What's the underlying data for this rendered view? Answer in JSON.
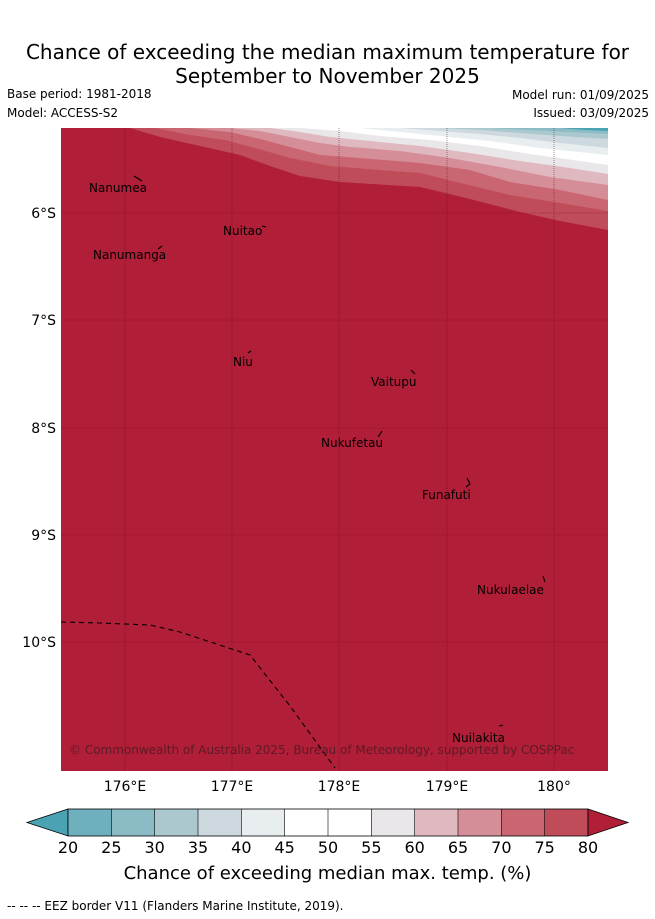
{
  "title": {
    "line1": "Chance of exceeding the median maximum temperature for",
    "line2": "September to November 2025"
  },
  "meta": {
    "base_period": "Base period: 1981-2018",
    "model": "Model: ACCESS-S2",
    "model_run": "Model run: 01/09/2025",
    "issued": "Issued: 03/09/2025"
  },
  "map": {
    "lon_range": [
      175.5,
      180.5
    ],
    "lat_range": [
      -5.3,
      -11.3
    ],
    "x_ticks": [
      "176°E",
      "177°E",
      "178°E",
      "179°E",
      "180°"
    ],
    "y_ticks": [
      "6°S",
      "7°S",
      "8°S",
      "9°S",
      "10°S"
    ],
    "places": [
      {
        "name": "Nanumea"
      },
      {
        "name": "Nuitao"
      },
      {
        "name": "Nanumanga"
      },
      {
        "name": "Niu"
      },
      {
        "name": "Vaitupu"
      },
      {
        "name": "Nukufetau"
      },
      {
        "name": "Funafuti"
      },
      {
        "name": "Nukulaelae"
      },
      {
        "name": "Nuilakita"
      }
    ],
    "copyright": "© Commonwealth of Australia 2025, Bureau of Meteorology, supported by COSPPac",
    "fill_value_pct": 80
  },
  "colorbar": {
    "title": "Chance of exceeding median max. temp. (%)",
    "ticks": [
      "20",
      "25",
      "30",
      "35",
      "40",
      "45",
      "50",
      "55",
      "60",
      "65",
      "70",
      "75",
      "80"
    ],
    "colors": [
      "#4aa3b3",
      "#6eb0bd",
      "#8bbbc5",
      "#aac8ce",
      "#cdd9de",
      "#e8eef0",
      "#ffffff",
      "#ffffff",
      "#e9e7e9",
      "#dfb8c0",
      "#d58e98",
      "#c96671",
      "#bf4c58",
      "#b01e38"
    ]
  },
  "footer": "-- -- -- EEZ border V11 (Flanders Marine Institute, 2019)."
}
